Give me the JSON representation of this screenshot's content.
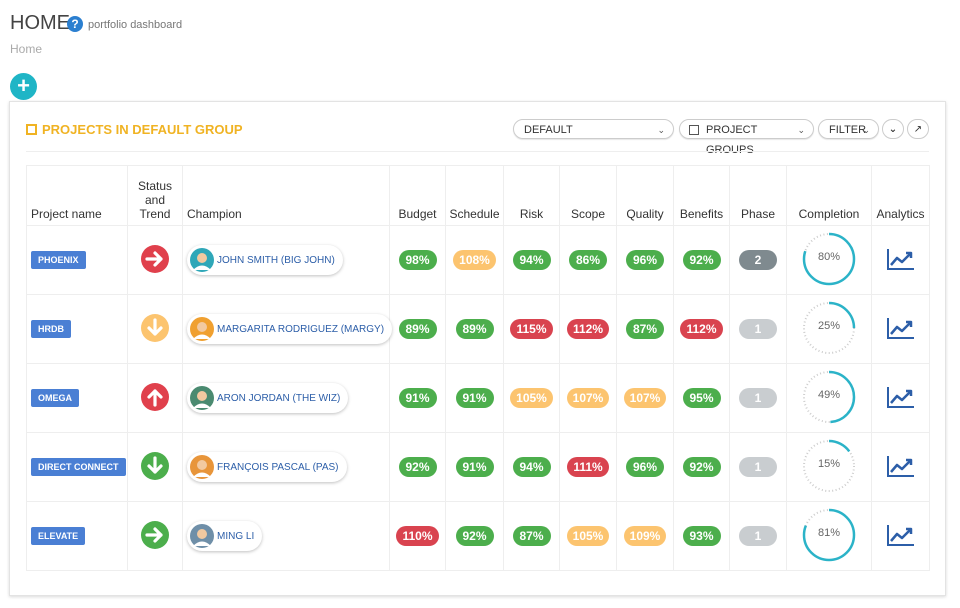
{
  "header": {
    "title": "HOME",
    "subtitle": "portfolio dashboard",
    "breadcrumb": "Home"
  },
  "panel": {
    "title": "PROJECTS IN DEFAULT GROUP",
    "controls": {
      "view": "DEFAULT",
      "groups": "PROJECT GROUPS",
      "filter": "FILTER"
    }
  },
  "table": {
    "columns": [
      "Project name",
      "Status and Trend",
      "Champion",
      "Budget",
      "Schedule",
      "Risk",
      "Scope",
      "Quality",
      "Benefits",
      "Phase",
      "Completion",
      "Analytics"
    ],
    "rows": [
      {
        "project": "PHOENIX",
        "trend": "right",
        "trend_color": "#e0404c",
        "champion": "JOHN SMITH (BIG JOHN)",
        "metrics": [
          {
            "text": "98%",
            "color": "#4cae4c"
          },
          {
            "text": "108%",
            "color": "#fcc46f"
          },
          {
            "text": "94%",
            "color": "#4cae4c"
          },
          {
            "text": "86%",
            "color": "#4cae4c"
          },
          {
            "text": "96%",
            "color": "#4cae4c"
          },
          {
            "text": "92%",
            "color": "#4cae4c"
          }
        ],
        "phase": {
          "text": "2",
          "color": "#7f8a8f"
        },
        "completion": {
          "value": 80,
          "label": "80%"
        }
      },
      {
        "project": "HRDB",
        "trend": "down",
        "trend_color": "#fcc46f",
        "champion": "MARGARITA RODRIGUEZ (MARGY)",
        "metrics": [
          {
            "text": "89%",
            "color": "#4cae4c"
          },
          {
            "text": "89%",
            "color": "#4cae4c"
          },
          {
            "text": "115%",
            "color": "#d9434f"
          },
          {
            "text": "112%",
            "color": "#d9434f"
          },
          {
            "text": "87%",
            "color": "#4cae4c"
          },
          {
            "text": "112%",
            "color": "#d9434f"
          }
        ],
        "phase": {
          "text": "1",
          "color": "#c9cdd0"
        },
        "completion": {
          "value": 25,
          "label": "25%"
        }
      },
      {
        "project": "OMEGA",
        "trend": "up",
        "trend_color": "#e0404c",
        "champion": "ARON JORDAN (THE WIZ)",
        "metrics": [
          {
            "text": "91%",
            "color": "#4cae4c"
          },
          {
            "text": "91%",
            "color": "#4cae4c"
          },
          {
            "text": "105%",
            "color": "#fcc46f"
          },
          {
            "text": "107%",
            "color": "#fcc46f"
          },
          {
            "text": "107%",
            "color": "#fcc46f"
          },
          {
            "text": "95%",
            "color": "#4cae4c"
          }
        ],
        "phase": {
          "text": "1",
          "color": "#c9cdd0"
        },
        "completion": {
          "value": 49,
          "label": "49%"
        }
      },
      {
        "project": "DIRECT CONNECT",
        "trend": "down",
        "trend_color": "#4cae4c",
        "champion": "FRANÇOIS PASCAL (PAS)",
        "metrics": [
          {
            "text": "92%",
            "color": "#4cae4c"
          },
          {
            "text": "91%",
            "color": "#4cae4c"
          },
          {
            "text": "94%",
            "color": "#4cae4c"
          },
          {
            "text": "111%",
            "color": "#d9434f"
          },
          {
            "text": "96%",
            "color": "#4cae4c"
          },
          {
            "text": "92%",
            "color": "#4cae4c"
          }
        ],
        "phase": {
          "text": "1",
          "color": "#c9cdd0"
        },
        "completion": {
          "value": 15,
          "label": "15%"
        }
      },
      {
        "project": "ELEVATE",
        "trend": "right",
        "trend_color": "#4cae4c",
        "champion": "MING LI",
        "metrics": [
          {
            "text": "110%",
            "color": "#d9434f"
          },
          {
            "text": "92%",
            "color": "#4cae4c"
          },
          {
            "text": "87%",
            "color": "#4cae4c"
          },
          {
            "text": "105%",
            "color": "#fcc46f"
          },
          {
            "text": "109%",
            "color": "#fcc46f"
          },
          {
            "text": "93%",
            "color": "#4cae4c"
          }
        ],
        "phase": {
          "text": "1",
          "color": "#c9cdd0"
        },
        "completion": {
          "value": 81,
          "label": "81%"
        }
      }
    ]
  }
}
